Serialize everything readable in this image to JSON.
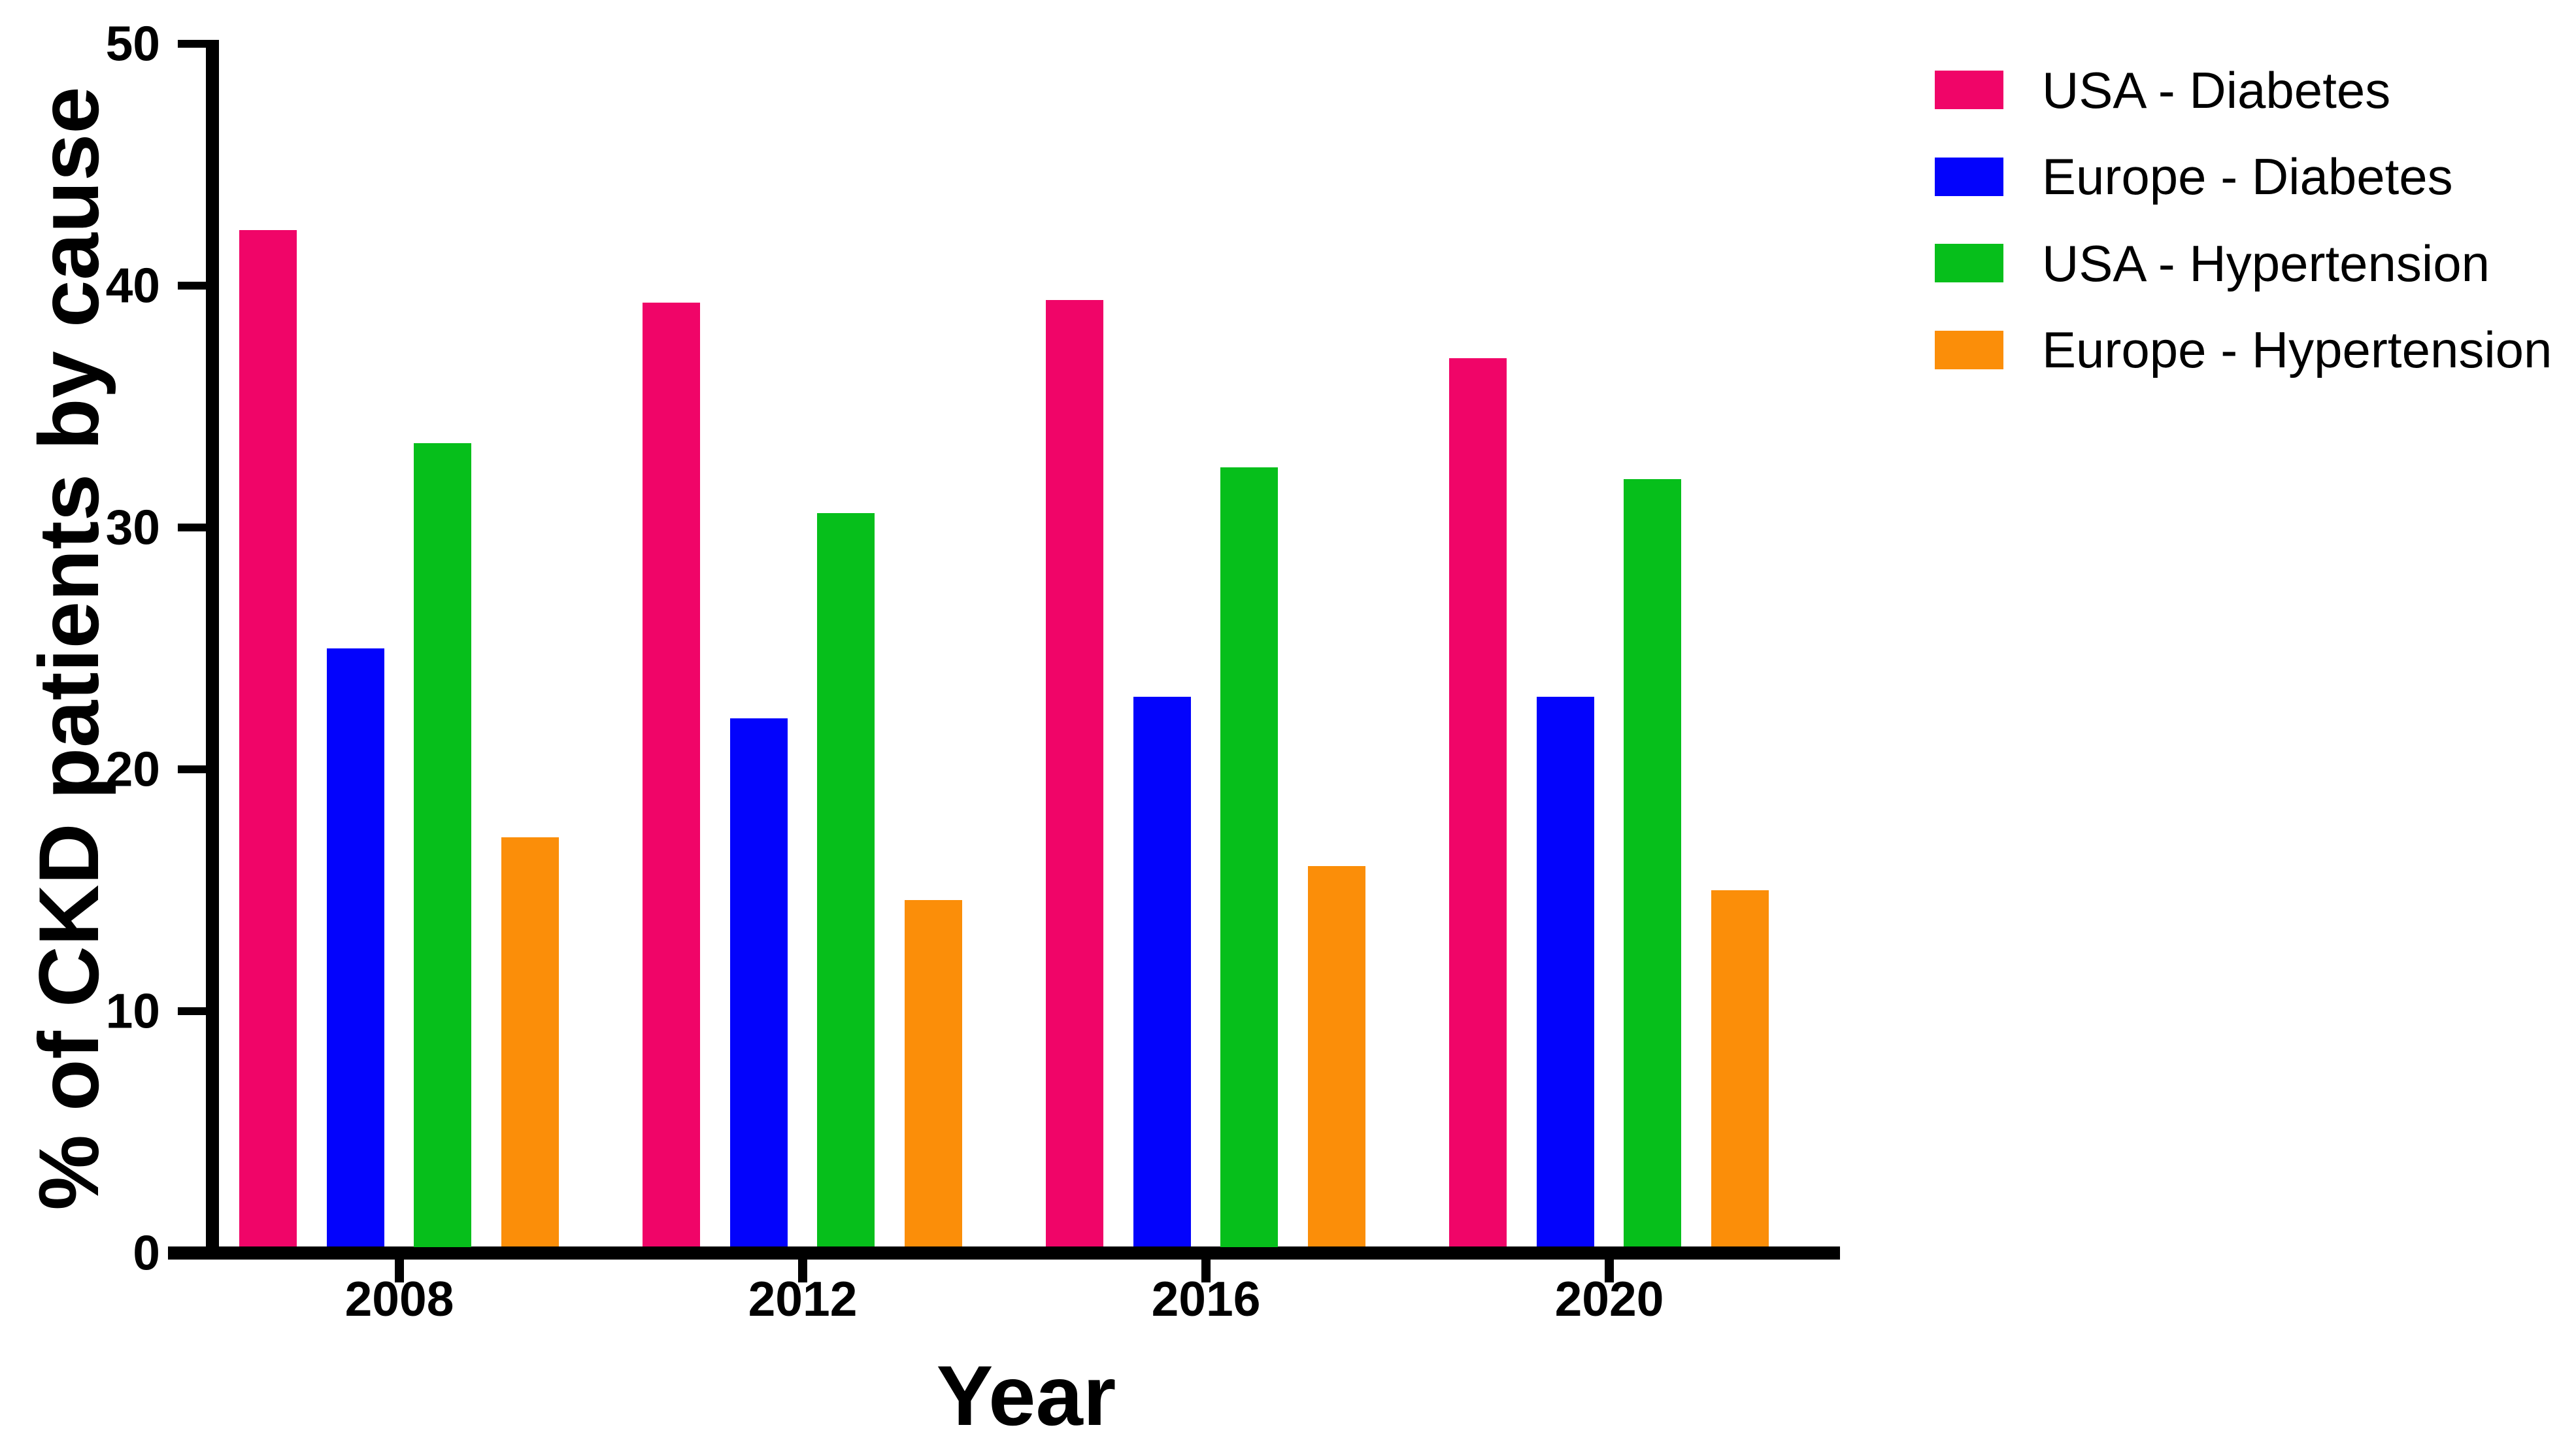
{
  "chart_data": {
    "type": "bar",
    "title": "",
    "xlabel": "Year",
    "ylabel": "% of CKD patients by cause",
    "categories": [
      "2008",
      "2012",
      "2016",
      "2020"
    ],
    "series": [
      {
        "name": "USA - Diabetes",
        "color": "#F00568",
        "values": [
          42.3,
          39.3,
          39.4,
          37.0
        ]
      },
      {
        "name": "Europe - Diabetes",
        "color": "#0303FC",
        "values": [
          25.0,
          22.1,
          23.0,
          23.0
        ]
      },
      {
        "name": "USA - Hypertension",
        "color": "#06BF1B",
        "values": [
          33.5,
          30.6,
          32.5,
          32.0
        ]
      },
      {
        "name": "Europe - Hypertension",
        "color": "#FB8E09",
        "values": [
          17.2,
          14.6,
          16.0,
          15.0
        ]
      }
    ],
    "ylim": [
      0,
      50
    ],
    "yticks": [
      0,
      10,
      20,
      30,
      40,
      50
    ],
    "grid": false,
    "legend_position": "top-right",
    "axis_color": "#000000",
    "text_color": "#000000",
    "background": "#FFFFFF"
  }
}
